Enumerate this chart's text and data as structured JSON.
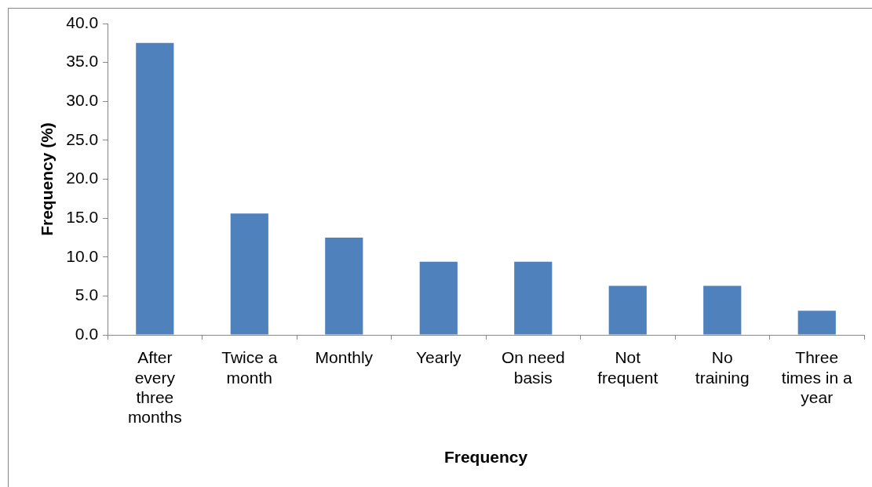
{
  "chart_data": {
    "type": "bar",
    "xlabel": "Frequency",
    "ylabel": "Frequency (%)",
    "categories": [
      "After every three months",
      "Twice a month",
      "Monthly",
      "Yearly",
      "On need basis",
      "Not frequent",
      "No training",
      "Three times in a year"
    ],
    "values": [
      37.5,
      15.6,
      12.5,
      9.4,
      9.4,
      6.3,
      6.3,
      3.1
    ],
    "color": "#4f81bd",
    "ylim": [
      0,
      40
    ],
    "yticks": [
      {
        "value": 0,
        "label": "0.0"
      },
      {
        "value": 5,
        "label": "5.0"
      },
      {
        "value": 10,
        "label": "10.0"
      },
      {
        "value": 15,
        "label": "15.0"
      },
      {
        "value": 20,
        "label": "20.0"
      },
      {
        "value": 25,
        "label": "25.0"
      },
      {
        "value": 30,
        "label": "30.0"
      },
      {
        "value": 35,
        "label": "35.0"
      },
      {
        "value": 40,
        "label": "40.0"
      }
    ],
    "grid": false,
    "legend": false
  }
}
